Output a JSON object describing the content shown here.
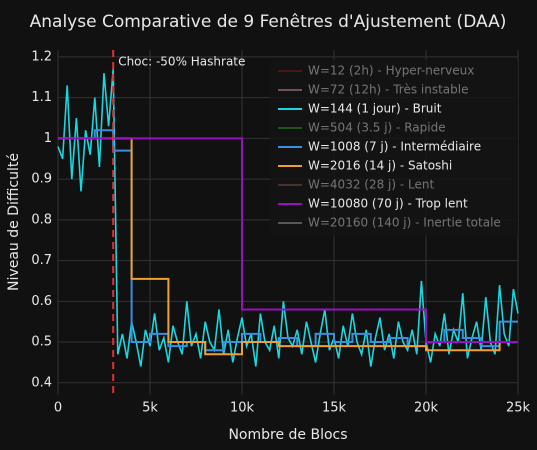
{
  "chart_data": {
    "type": "line",
    "title": "Analyse Comparative de 9 Fenêtres d'Ajustement (DAA)",
    "x_label": "Nombre de Blocs",
    "y_label": "Niveau de Difficulté",
    "annotation": "Choc: -50% Hashrate",
    "shock_x": 3000,
    "shock_color": "#e03030",
    "xlim": [
      0,
      25000
    ],
    "ylim": [
      0.37,
      1.217
    ],
    "xticks": [
      0,
      {
        "value": 5000,
        "label": "5k"
      },
      {
        "value": 10000,
        "label": "10k"
      },
      {
        "value": 15000,
        "label": "15k"
      },
      {
        "value": 20000,
        "label": "20k"
      },
      {
        "value": 25000,
        "label": "25k"
      }
    ],
    "yticks": [
      0.4,
      0.5,
      0.6,
      0.7,
      0.8,
      0.9,
      1,
      1.1,
      1.2
    ],
    "grid": true,
    "legend": "top-right",
    "x": [
      0,
      250,
      500,
      750,
      1000,
      1250,
      1500,
      1750,
      2000,
      2250,
      2500,
      2750,
      3000,
      3250,
      3500,
      3750,
      4000,
      4250,
      4500,
      4750,
      5000,
      5250,
      5500,
      5750,
      6000,
      6250,
      6500,
      6750,
      7000,
      7250,
      7500,
      7750,
      8000,
      8250,
      8500,
      8750,
      9000,
      9250,
      9500,
      9750,
      10000,
      10250,
      10500,
      10750,
      11000,
      11250,
      11500,
      11750,
      12000,
      12250,
      12500,
      12750,
      13000,
      13250,
      13500,
      13750,
      14000,
      14250,
      14500,
      14750,
      15000,
      15250,
      15500,
      15750,
      16000,
      16250,
      16500,
      16750,
      17000,
      17250,
      17500,
      17750,
      18000,
      18250,
      18500,
      18750,
      19000,
      19250,
      19500,
      19750,
      20000,
      20250,
      20500,
      20750,
      21000,
      21250,
      21500,
      21750,
      22000,
      22250,
      22500,
      22750,
      23000,
      23250,
      23500,
      23750,
      24000,
      24250,
      24500,
      24750,
      25000
    ],
    "series": [
      {
        "name": "W=12 (2h) - Hyper-nerveux",
        "color": "#8b1a1a",
        "visible": "legendonly"
      },
      {
        "name": "W=72 (12h) - Très instable",
        "color": "#e0a0a0",
        "visible": "legendonly"
      },
      {
        "name": "W=144 (1 jour) - Bruit",
        "color": "#17d8e0",
        "values": [
          0.98,
          0.95,
          1.13,
          0.9,
          1.05,
          0.87,
          1.02,
          0.96,
          1.1,
          0.93,
          1.16,
          1.03,
          1.17,
          0.47,
          0.52,
          0.46,
          0.55,
          0.5,
          0.44,
          0.53,
          0.49,
          0.57,
          0.48,
          0.51,
          0.45,
          0.54,
          0.5,
          0.47,
          0.6,
          0.49,
          0.52,
          0.46,
          0.55,
          0.5,
          0.48,
          0.58,
          0.47,
          0.53,
          0.45,
          0.51,
          0.56,
          0.49,
          0.52,
          0.44,
          0.57,
          0.5,
          0.48,
          0.54,
          0.46,
          0.6,
          0.51,
          0.49,
          0.53,
          0.47,
          0.55,
          0.5,
          0.45,
          0.52,
          0.58,
          0.48,
          0.51,
          0.46,
          0.54,
          0.49,
          0.57,
          0.5,
          0.47,
          0.53,
          0.44,
          0.51,
          0.56,
          0.48,
          0.52,
          0.46,
          0.55,
          0.5,
          0.48,
          0.53,
          0.47,
          0.65,
          0.5,
          0.45,
          0.52,
          0.49,
          0.57,
          0.47,
          0.53,
          0.5,
          0.62,
          0.46,
          0.51,
          0.55,
          0.48,
          0.61,
          0.5,
          0.47,
          0.64,
          0.52,
          0.49,
          0.63,
          0.57
        ]
      },
      {
        "name": "W=504 (3.5 j) - Rapide",
        "color": "#2ca02c",
        "visible": "legendonly"
      },
      {
        "name": "W=1008 (7 j) - Intermédiaire",
        "color": "#3a8fe0",
        "shape": "hv",
        "x": [
          0,
          2000,
          3000,
          4000,
          5000,
          6000,
          7000,
          8000,
          9000,
          10000,
          11000,
          12000,
          13000,
          14000,
          15000,
          16000,
          17000,
          18000,
          19000,
          20000,
          21000,
          22000,
          23000,
          24000,
          25000
        ],
        "values": [
          1.0,
          1.02,
          0.97,
          0.5,
          0.52,
          0.49,
          0.5,
          0.48,
          0.5,
          0.52,
          0.5,
          0.51,
          0.49,
          0.52,
          0.5,
          0.52,
          0.5,
          0.51,
          0.49,
          0.5,
          0.53,
          0.51,
          0.49,
          0.55,
          0.55
        ]
      },
      {
        "name": "W=2016 (14 j) - Satoshi",
        "color": "#f0a030",
        "shape": "hv",
        "x": [
          0,
          4000,
          6000,
          8000,
          10000,
          12000,
          14000,
          16000,
          18000,
          20000,
          22000,
          24000,
          25000
        ],
        "values": [
          1.0,
          0.655,
          0.5,
          0.47,
          0.5,
          0.49,
          0.49,
          0.49,
          0.49,
          0.48,
          0.48,
          0.5,
          0.5
        ]
      },
      {
        "name": "W=4032 (28 j) - Lent",
        "color": "#8c564b",
        "visible": "legendonly"
      },
      {
        "name": "W=10080 (70 j) - Trop lent",
        "color": "#9a10c0",
        "shape": "hv",
        "x": [
          0,
          10000,
          20000,
          25000
        ],
        "values": [
          1.0,
          0.58,
          0.5,
          0.5
        ]
      },
      {
        "name": "W=20160 (140 j) - Inertie totale",
        "color": "#aaaaaa",
        "visible": "legendonly"
      }
    ]
  }
}
